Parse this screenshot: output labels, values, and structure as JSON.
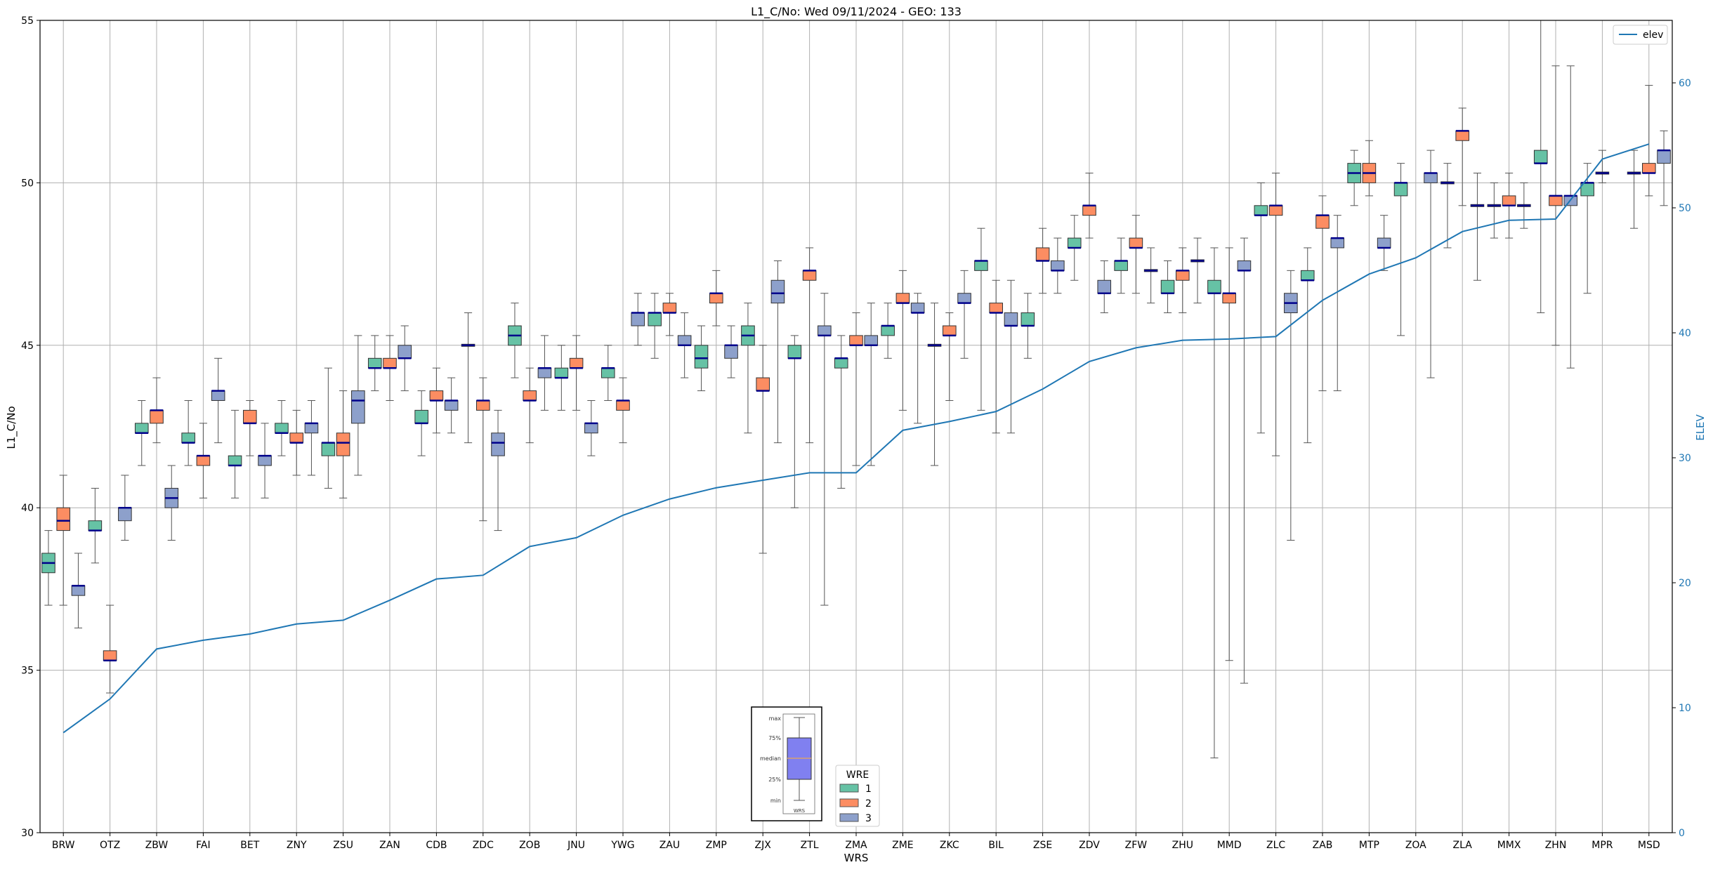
{
  "chart_data": {
    "type": "box",
    "title": "L1_C/No: Wed 09/11/2024 - GEO: 133",
    "xlabel": "WRS",
    "ylabel": "L1_C/No",
    "y2label": "ELEV",
    "ylim": [
      30,
      55
    ],
    "y2lim": [
      0,
      65
    ],
    "yticks": [
      30,
      35,
      40,
      45,
      50,
      55
    ],
    "y2ticks": [
      0,
      10,
      20,
      30,
      40,
      50,
      60
    ],
    "grid": true,
    "categories": [
      "BRW",
      "OTZ",
      "ZBW",
      "FAI",
      "BET",
      "ZNY",
      "ZSU",
      "ZAN",
      "CDB",
      "ZDC",
      "ZOB",
      "JNU",
      "YWG",
      "ZAU",
      "ZMP",
      "ZJX",
      "ZTL",
      "ZMA",
      "ZME",
      "ZKC",
      "BIL",
      "ZSE",
      "ZDV",
      "ZFW",
      "ZHU",
      "MMD",
      "ZLC",
      "ZAB",
      "MTP",
      "ZOA",
      "ZLA",
      "MMX",
      "ZHN",
      "MPR",
      "MSD"
    ],
    "elev": {
      "name": "elev",
      "values": [
        8.0,
        10.7,
        14.7,
        15.4,
        15.9,
        16.7,
        17.0,
        18.6,
        20.3,
        20.6,
        22.9,
        23.6,
        25.4,
        26.7,
        27.6,
        28.2,
        28.8,
        28.8,
        32.2,
        32.9,
        33.7,
        35.5,
        37.7,
        38.8,
        39.4,
        39.5,
        39.7,
        42.6,
        44.7,
        46.0,
        48.1,
        49.0,
        49.1,
        53.9,
        55.1
      ]
    },
    "series": [
      {
        "name": "1",
        "color": "#66c2a5",
        "boxes": [
          {
            "cat": 0,
            "min": 37.0,
            "q1": 38.0,
            "median": 38.3,
            "q3": 38.6,
            "max": 39.3
          },
          {
            "cat": 1,
            "min": 38.3,
            "q1": 39.3,
            "median": 39.3,
            "q3": 39.6,
            "max": 40.6
          },
          {
            "cat": 2,
            "min": 41.3,
            "q1": 42.3,
            "median": 42.3,
            "q3": 42.6,
            "max": 43.3
          },
          {
            "cat": 3,
            "min": 41.3,
            "q1": 42.0,
            "median": 42.0,
            "q3": 42.3,
            "max": 43.3
          },
          {
            "cat": 4,
            "min": 40.3,
            "q1": 41.3,
            "median": 41.3,
            "q3": 41.6,
            "max": 43.0
          },
          {
            "cat": 5,
            "min": 41.6,
            "q1": 42.3,
            "median": 42.3,
            "q3": 42.6,
            "max": 43.3
          },
          {
            "cat": 6,
            "min": 40.6,
            "q1": 41.6,
            "median": 42.0,
            "q3": 42.0,
            "max": 44.3
          },
          {
            "cat": 7,
            "min": 43.6,
            "q1": 44.3,
            "median": 44.3,
            "q3": 44.6,
            "max": 45.3
          },
          {
            "cat": 8,
            "min": 41.6,
            "q1": 42.6,
            "median": 42.6,
            "q3": 43.0,
            "max": 43.6
          },
          {
            "cat": 9,
            "min": 42.0,
            "q1": 45.0,
            "median": 45.0,
            "q3": 45.0,
            "max": 46.0
          },
          {
            "cat": 10,
            "min": 44.0,
            "q1": 45.0,
            "median": 45.3,
            "q3": 45.6,
            "max": 46.3
          },
          {
            "cat": 11,
            "min": 43.0,
            "q1": 44.0,
            "median": 44.0,
            "q3": 44.3,
            "max": 45.0
          },
          {
            "cat": 12,
            "min": 43.3,
            "q1": 44.0,
            "median": 44.3,
            "q3": 44.3,
            "max": 45.0
          },
          {
            "cat": 13,
            "min": 44.6,
            "q1": 45.6,
            "median": 46.0,
            "q3": 46.0,
            "max": 46.6
          },
          {
            "cat": 14,
            "min": 43.6,
            "q1": 44.3,
            "median": 44.6,
            "q3": 45.0,
            "max": 45.6
          },
          {
            "cat": 15,
            "min": 42.3,
            "q1": 45.0,
            "median": 45.3,
            "q3": 45.6,
            "max": 46.3
          },
          {
            "cat": 16,
            "min": 40.0,
            "q1": 44.6,
            "median": 44.6,
            "q3": 45.0,
            "max": 45.3
          },
          {
            "cat": 17,
            "min": 40.6,
            "q1": 44.3,
            "median": 44.6,
            "q3": 44.6,
            "max": 45.3
          },
          {
            "cat": 18,
            "min": 44.6,
            "q1": 45.3,
            "median": 45.6,
            "q3": 45.6,
            "max": 46.3
          },
          {
            "cat": 19,
            "min": 41.3,
            "q1": 45.0,
            "median": 45.0,
            "q3": 45.0,
            "max": 46.3
          },
          {
            "cat": 20,
            "min": 43.0,
            "q1": 47.3,
            "median": 47.6,
            "q3": 47.6,
            "max": 48.6
          },
          {
            "cat": 21,
            "min": 44.6,
            "q1": 45.6,
            "median": 45.6,
            "q3": 46.0,
            "max": 46.6
          },
          {
            "cat": 22,
            "min": 47.0,
            "q1": 48.0,
            "median": 48.0,
            "q3": 48.3,
            "max": 49.0
          },
          {
            "cat": 23,
            "min": 46.6,
            "q1": 47.3,
            "median": 47.6,
            "q3": 47.6,
            "max": 48.3
          },
          {
            "cat": 24,
            "min": 46.0,
            "q1": 46.6,
            "median": 46.6,
            "q3": 47.0,
            "max": 47.6
          },
          {
            "cat": 25,
            "min": 32.3,
            "q1": 46.6,
            "median": 46.6,
            "q3": 47.0,
            "max": 48.0
          },
          {
            "cat": 26,
            "min": 42.3,
            "q1": 49.0,
            "median": 49.0,
            "q3": 49.3,
            "max": 50.0
          },
          {
            "cat": 27,
            "min": 42.0,
            "q1": 47.0,
            "median": 47.0,
            "q3": 47.3,
            "max": 48.0
          },
          {
            "cat": 28,
            "min": 49.3,
            "q1": 50.0,
            "median": 50.3,
            "q3": 50.6,
            "max": 51.0
          },
          {
            "cat": 29,
            "min": 45.3,
            "q1": 49.6,
            "median": 50.0,
            "q3": 50.0,
            "max": 50.6
          },
          {
            "cat": 30,
            "min": 48.0,
            "q1": 50.0,
            "median": 50.0,
            "q3": 50.0,
            "max": 50.6
          },
          {
            "cat": 31,
            "min": 48.3,
            "q1": 49.3,
            "median": 49.3,
            "q3": 49.3,
            "max": 50.0
          },
          {
            "cat": 32,
            "min": 46.0,
            "q1": 50.6,
            "median": 50.6,
            "q3": 51.0,
            "max": 55.0
          },
          {
            "cat": 33,
            "min": 46.6,
            "q1": 49.6,
            "median": 50.0,
            "q3": 50.0,
            "max": 50.6
          },
          {
            "cat": 34,
            "min": 48.6,
            "q1": 50.3,
            "median": 50.3,
            "q3": 50.3,
            "max": 51.0
          }
        ]
      },
      {
        "name": "2",
        "color": "#fc8d62",
        "boxes": [
          {
            "cat": 0,
            "min": 37.0,
            "q1": 39.3,
            "median": 39.6,
            "q3": 40.0,
            "max": 41.0
          },
          {
            "cat": 1,
            "min": 34.3,
            "q1": 35.3,
            "median": 35.3,
            "q3": 35.6,
            "max": 37.0
          },
          {
            "cat": 2,
            "min": 42.0,
            "q1": 42.6,
            "median": 43.0,
            "q3": 43.0,
            "max": 44.0
          },
          {
            "cat": 3,
            "min": 40.3,
            "q1": 41.3,
            "median": 41.6,
            "q3": 41.6,
            "max": 42.6
          },
          {
            "cat": 4,
            "min": 41.6,
            "q1": 42.6,
            "median": 42.6,
            "q3": 43.0,
            "max": 43.3
          },
          {
            "cat": 5,
            "min": 41.0,
            "q1": 42.0,
            "median": 42.0,
            "q3": 42.3,
            "max": 43.0
          },
          {
            "cat": 6,
            "min": 40.3,
            "q1": 41.6,
            "median": 42.0,
            "q3": 42.3,
            "max": 43.6
          },
          {
            "cat": 7,
            "min": 43.3,
            "q1": 44.3,
            "median": 44.3,
            "q3": 44.6,
            "max": 45.3
          },
          {
            "cat": 8,
            "min": 42.3,
            "q1": 43.3,
            "median": 43.3,
            "q3": 43.6,
            "max": 44.3
          },
          {
            "cat": 9,
            "min": 39.6,
            "q1": 43.0,
            "median": 43.3,
            "q3": 43.3,
            "max": 44.0
          },
          {
            "cat": 10,
            "min": 42.0,
            "q1": 43.3,
            "median": 43.3,
            "q3": 43.6,
            "max": 44.3
          },
          {
            "cat": 11,
            "min": 43.0,
            "q1": 44.3,
            "median": 44.3,
            "q3": 44.6,
            "max": 45.3
          },
          {
            "cat": 12,
            "min": 42.0,
            "q1": 43.0,
            "median": 43.3,
            "q3": 43.3,
            "max": 44.0
          },
          {
            "cat": 13,
            "min": 45.3,
            "q1": 46.0,
            "median": 46.0,
            "q3": 46.3,
            "max": 46.6
          },
          {
            "cat": 14,
            "min": 45.6,
            "q1": 46.3,
            "median": 46.6,
            "q3": 46.6,
            "max": 47.3
          },
          {
            "cat": 15,
            "min": 38.6,
            "q1": 43.6,
            "median": 43.6,
            "q3": 44.0,
            "max": 45.0
          },
          {
            "cat": 16,
            "min": 42.0,
            "q1": 47.0,
            "median": 47.3,
            "q3": 47.3,
            "max": 48.0
          },
          {
            "cat": 17,
            "min": 41.3,
            "q1": 45.0,
            "median": 45.0,
            "q3": 45.3,
            "max": 46.0
          },
          {
            "cat": 18,
            "min": 43.0,
            "q1": 46.3,
            "median": 46.3,
            "q3": 46.6,
            "max": 47.3
          },
          {
            "cat": 19,
            "min": 43.3,
            "q1": 45.3,
            "median": 45.3,
            "q3": 45.6,
            "max": 46.0
          },
          {
            "cat": 20,
            "min": 42.3,
            "q1": 46.0,
            "median": 46.0,
            "q3": 46.3,
            "max": 47.0
          },
          {
            "cat": 21,
            "min": 46.6,
            "q1": 47.6,
            "median": 47.6,
            "q3": 48.0,
            "max": 48.6
          },
          {
            "cat": 22,
            "min": 48.3,
            "q1": 49.0,
            "median": 49.3,
            "q3": 49.3,
            "max": 50.3
          },
          {
            "cat": 23,
            "min": 46.6,
            "q1": 48.0,
            "median": 48.0,
            "q3": 48.3,
            "max": 49.0
          },
          {
            "cat": 24,
            "min": 46.0,
            "q1": 47.0,
            "median": 47.3,
            "q3": 47.3,
            "max": 48.0
          },
          {
            "cat": 25,
            "min": 35.3,
            "q1": 46.3,
            "median": 46.6,
            "q3": 46.6,
            "max": 48.0
          },
          {
            "cat": 26,
            "min": 41.6,
            "q1": 49.0,
            "median": 49.3,
            "q3": 49.3,
            "max": 50.3
          },
          {
            "cat": 27,
            "min": 43.6,
            "q1": 48.6,
            "median": 49.0,
            "q3": 49.0,
            "max": 49.6
          },
          {
            "cat": 28,
            "min": 49.6,
            "q1": 50.0,
            "median": 50.3,
            "q3": 50.6,
            "max": 51.3
          },
          {
            "cat": 30,
            "min": 49.3,
            "q1": 51.3,
            "median": 51.6,
            "q3": 51.6,
            "max": 52.3
          },
          {
            "cat": 31,
            "min": 48.3,
            "q1": 49.3,
            "median": 49.3,
            "q3": 49.6,
            "max": 50.3
          },
          {
            "cat": 32,
            "min": 45.0,
            "q1": 49.3,
            "median": 49.6,
            "q3": 49.6,
            "max": 53.6
          },
          {
            "cat": 33,
            "min": 50.0,
            "q1": 50.3,
            "median": 50.3,
            "q3": 50.3,
            "max": 51.0
          },
          {
            "cat": 34,
            "min": 49.6,
            "q1": 50.3,
            "median": 50.3,
            "q3": 50.6,
            "max": 53.0
          }
        ]
      },
      {
        "name": "3",
        "color": "#8da0cb",
        "boxes": [
          {
            "cat": 0,
            "min": 36.3,
            "q1": 37.3,
            "median": 37.6,
            "q3": 37.6,
            "max": 38.6
          },
          {
            "cat": 1,
            "min": 39.0,
            "q1": 39.6,
            "median": 40.0,
            "q3": 40.0,
            "max": 41.0
          },
          {
            "cat": 2,
            "min": 39.0,
            "q1": 40.0,
            "median": 40.3,
            "q3": 40.6,
            "max": 41.3
          },
          {
            "cat": 3,
            "min": 42.0,
            "q1": 43.3,
            "median": 43.6,
            "q3": 43.6,
            "max": 44.6
          },
          {
            "cat": 4,
            "min": 40.3,
            "q1": 41.3,
            "median": 41.6,
            "q3": 41.6,
            "max": 42.6
          },
          {
            "cat": 5,
            "min": 41.0,
            "q1": 42.3,
            "median": 42.6,
            "q3": 42.6,
            "max": 43.3
          },
          {
            "cat": 6,
            "min": 41.0,
            "q1": 42.6,
            "median": 43.3,
            "q3": 43.6,
            "max": 45.3
          },
          {
            "cat": 7,
            "min": 43.6,
            "q1": 44.6,
            "median": 44.6,
            "q3": 45.0,
            "max": 45.6
          },
          {
            "cat": 8,
            "min": 42.3,
            "q1": 43.0,
            "median": 43.3,
            "q3": 43.3,
            "max": 44.0
          },
          {
            "cat": 9,
            "min": 39.3,
            "q1": 41.6,
            "median": 42.0,
            "q3": 42.3,
            "max": 43.0
          },
          {
            "cat": 10,
            "min": 43.0,
            "q1": 44.0,
            "median": 44.3,
            "q3": 44.3,
            "max": 45.3
          },
          {
            "cat": 11,
            "min": 41.6,
            "q1": 42.3,
            "median": 42.6,
            "q3": 42.6,
            "max": 43.3
          },
          {
            "cat": 12,
            "min": 45.0,
            "q1": 45.6,
            "median": 46.0,
            "q3": 46.0,
            "max": 46.6
          },
          {
            "cat": 13,
            "min": 44.0,
            "q1": 45.0,
            "median": 45.0,
            "q3": 45.3,
            "max": 46.0
          },
          {
            "cat": 14,
            "min": 44.0,
            "q1": 44.6,
            "median": 45.0,
            "q3": 45.0,
            "max": 45.6
          },
          {
            "cat": 15,
            "min": 42.0,
            "q1": 46.3,
            "median": 46.6,
            "q3": 47.0,
            "max": 47.6
          },
          {
            "cat": 16,
            "min": 37.0,
            "q1": 45.3,
            "median": 45.3,
            "q3": 45.6,
            "max": 46.6
          },
          {
            "cat": 17,
            "min": 41.3,
            "q1": 45.0,
            "median": 45.0,
            "q3": 45.3,
            "max": 46.3
          },
          {
            "cat": 18,
            "min": 42.6,
            "q1": 46.0,
            "median": 46.0,
            "q3": 46.3,
            "max": 46.6
          },
          {
            "cat": 19,
            "min": 44.6,
            "q1": 46.3,
            "median": 46.3,
            "q3": 46.6,
            "max": 47.3
          },
          {
            "cat": 20,
            "min": 42.3,
            "q1": 45.6,
            "median": 45.6,
            "q3": 46.0,
            "max": 47.0
          },
          {
            "cat": 21,
            "min": 46.6,
            "q1": 47.3,
            "median": 47.3,
            "q3": 47.6,
            "max": 48.3
          },
          {
            "cat": 22,
            "min": 46.0,
            "q1": 46.6,
            "median": 46.6,
            "q3": 47.0,
            "max": 47.6
          },
          {
            "cat": 23,
            "min": 46.3,
            "q1": 47.3,
            "median": 47.3,
            "q3": 47.3,
            "max": 48.0
          },
          {
            "cat": 24,
            "min": 46.3,
            "q1": 47.6,
            "median": 47.6,
            "q3": 47.6,
            "max": 48.3
          },
          {
            "cat": 25,
            "min": 34.6,
            "q1": 47.3,
            "median": 47.3,
            "q3": 47.6,
            "max": 48.3
          },
          {
            "cat": 26,
            "min": 39.0,
            "q1": 46.0,
            "median": 46.3,
            "q3": 46.6,
            "max": 47.3
          },
          {
            "cat": 27,
            "min": 43.6,
            "q1": 48.0,
            "median": 48.3,
            "q3": 48.3,
            "max": 49.0
          },
          {
            "cat": 28,
            "min": 47.3,
            "q1": 48.0,
            "median": 48.0,
            "q3": 48.3,
            "max": 49.0
          },
          {
            "cat": 29,
            "min": 44.0,
            "q1": 50.0,
            "median": 50.3,
            "q3": 50.3,
            "max": 51.0
          },
          {
            "cat": 30,
            "min": 47.0,
            "q1": 49.3,
            "median": 49.3,
            "q3": 49.3,
            "max": 50.3
          },
          {
            "cat": 31,
            "min": 48.6,
            "q1": 49.3,
            "median": 49.3,
            "q3": 49.3,
            "max": 50.0
          },
          {
            "cat": 32,
            "min": 44.3,
            "q1": 49.3,
            "median": 49.6,
            "q3": 49.6,
            "max": 53.6
          },
          {
            "cat": 34,
            "min": 49.3,
            "q1": 50.6,
            "median": 51.0,
            "q3": 51.0,
            "max": 51.6
          }
        ]
      }
    ],
    "legend_series": {
      "title": "WRE",
      "entries": [
        "1",
        "2",
        "3"
      ],
      "placement": "bottom-center"
    },
    "legend_elev": {
      "entries": [
        "elev"
      ],
      "placement": "top-right"
    },
    "inset_key": {
      "labels": [
        "max",
        "75%",
        "median",
        "25%",
        "min"
      ],
      "xlabel": "WRS",
      "color": "#8080f0"
    }
  }
}
